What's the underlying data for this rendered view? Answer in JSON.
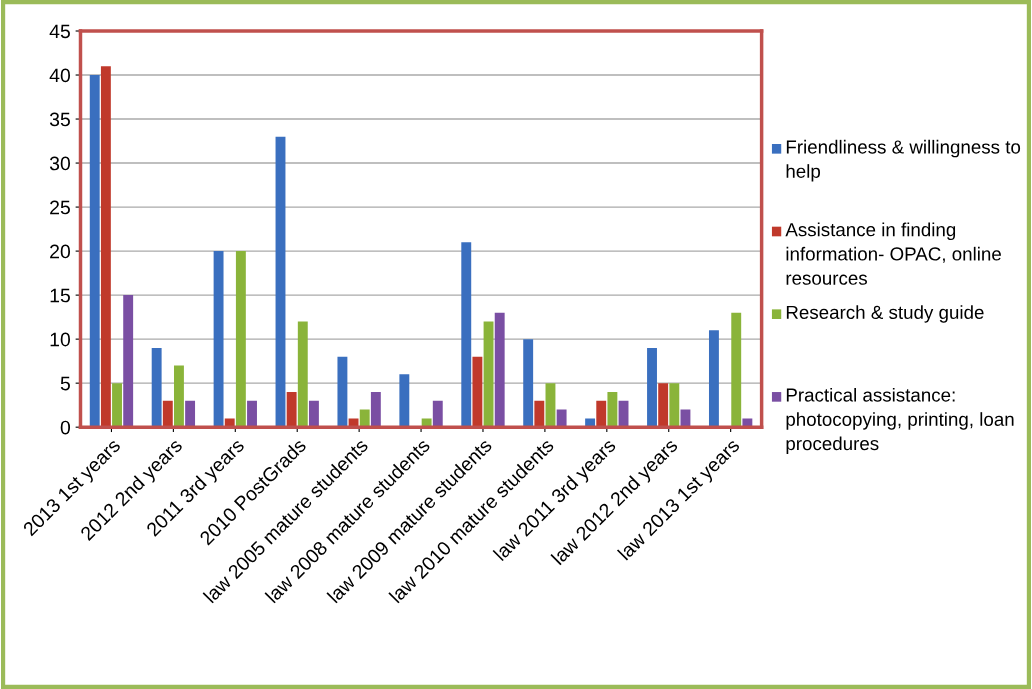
{
  "chart_data": {
    "type": "bar",
    "categories": [
      "2013 1st years",
      "2012 2nd years",
      "2011 3rd years",
      "2010 PostGrads",
      "law 2005 mature students",
      "law 2008 mature students",
      "law 2009 mature students",
      "law 2010 mature students",
      "law 2011 3rd years",
      "law 2012 2nd years",
      "law 2013 1st years"
    ],
    "series": [
      {
        "name": "Friendliness & willingness to help",
        "color": "#3a6fbf",
        "values": [
          40,
          9,
          20,
          33,
          8,
          6,
          21,
          10,
          1,
          9,
          11
        ]
      },
      {
        "name": "Assistance in finding information- OPAC, online resources",
        "color": "#c0392b",
        "values": [
          41,
          3,
          1,
          4,
          1,
          0,
          8,
          3,
          3,
          5,
          0
        ]
      },
      {
        "name": "Research & study guide",
        "color": "#8ab43a",
        "values": [
          5,
          7,
          20,
          12,
          2,
          1,
          12,
          5,
          4,
          5,
          13
        ]
      },
      {
        "name": "Practical assistance: photocopying, printing, loan procedures",
        "color": "#7a4fa3",
        "values": [
          15,
          3,
          3,
          3,
          4,
          3,
          13,
          2,
          3,
          2,
          1
        ]
      }
    ],
    "ylim": [
      0,
      45
    ],
    "yticks": [
      0,
      5,
      10,
      15,
      20,
      25,
      30,
      35,
      40,
      45
    ],
    "grid": "y",
    "legend": "right"
  }
}
